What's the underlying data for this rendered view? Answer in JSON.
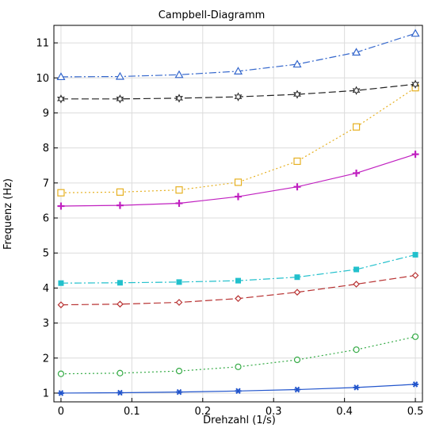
{
  "chart_data": {
    "type": "line",
    "title": "Campbell-Diagramm",
    "xlabel": "Drehzahl (1/s)",
    "ylabel": "Frequenz (Hz)",
    "xlim": [
      -0.01,
      0.51
    ],
    "ylim": [
      0.75,
      11.5
    ],
    "xticks": [
      0,
      0.1,
      0.2,
      0.3,
      0.4,
      0.5
    ],
    "xtick_labels": [
      "0",
      "0.1",
      "0.2",
      "0.3",
      "0.4",
      "0.5"
    ],
    "yticks": [
      1,
      2,
      3,
      4,
      5,
      6,
      7,
      8,
      9,
      10,
      11
    ],
    "ytick_labels": [
      "1",
      "2",
      "3",
      "4",
      "5",
      "6",
      "7",
      "8",
      "9",
      "10",
      "11"
    ],
    "grid": true,
    "x": [
      0,
      0.0833,
      0.1667,
      0.25,
      0.3333,
      0.4167,
      0.5
    ],
    "series": [
      {
        "values": [
          1.0,
          1.01,
          1.03,
          1.06,
          1.1,
          1.16,
          1.25
        ],
        "color": "#2255cc",
        "dash": "",
        "marker": "asterisk"
      },
      {
        "values": [
          1.55,
          1.57,
          1.63,
          1.75,
          1.95,
          2.24,
          2.61
        ],
        "color": "#33aa44",
        "dash": "2,3",
        "marker": "circle"
      },
      {
        "values": [
          3.52,
          3.54,
          3.59,
          3.7,
          3.88,
          4.11,
          4.36
        ],
        "color": "#b83232",
        "dash": "9,4",
        "marker": "diamond"
      },
      {
        "values": [
          4.14,
          4.15,
          4.17,
          4.21,
          4.31,
          4.53,
          4.95
        ],
        "color": "#22c0cc",
        "dash": "9,3,2,3",
        "marker": "square-filled"
      },
      {
        "values": [
          6.34,
          6.36,
          6.42,
          6.61,
          6.89,
          7.28,
          7.82
        ],
        "color": "#c020c0",
        "dash": "",
        "marker": "plus"
      },
      {
        "values": [
          6.72,
          6.74,
          6.8,
          7.02,
          7.62,
          8.6,
          9.72
        ],
        "color": "#e6b020",
        "dash": "2,3",
        "marker": "square-open"
      },
      {
        "values": [
          9.4,
          9.4,
          9.42,
          9.46,
          9.53,
          9.64,
          9.82
        ],
        "color": "#222222",
        "dash": "9,4",
        "marker": "star"
      },
      {
        "values": [
          10.03,
          10.04,
          10.09,
          10.19,
          10.39,
          10.73,
          11.27
        ],
        "color": "#3366cc",
        "dash": "9,3,2,3",
        "marker": "triangle"
      }
    ]
  }
}
